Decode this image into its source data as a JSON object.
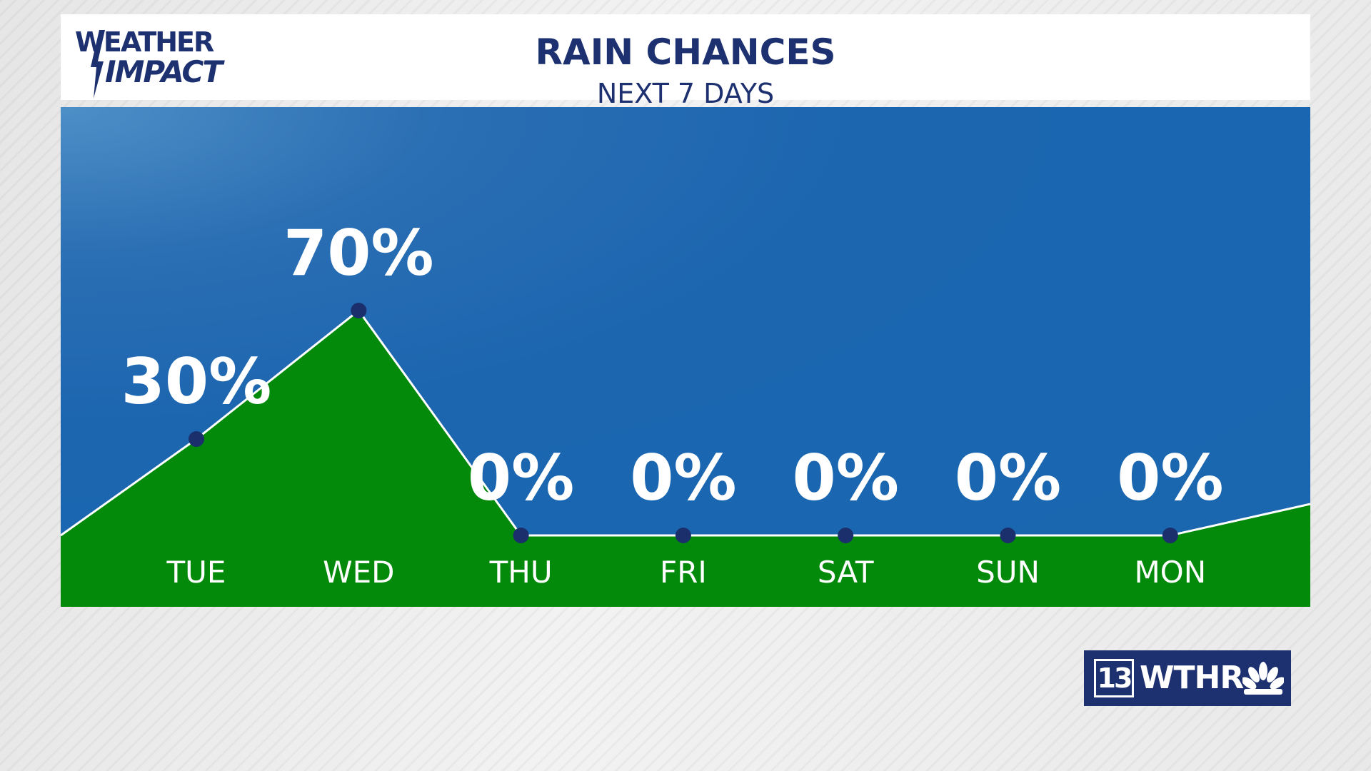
{
  "header": {
    "logo_line1": "WEATHER",
    "logo_line2": "IMPACT",
    "title": "RAIN CHANCES",
    "subtitle": "NEXT 7 DAYS"
  },
  "brand": {
    "channel": "13",
    "call_sign": "WTHR",
    "network_icon": "nbc-peacock-icon"
  },
  "colors": {
    "navy": "#1d3170",
    "panel_blue": "#1966af",
    "fill_green": "#038a0b",
    "line_white": "#ffffff",
    "point_navy": "#1a2f6b"
  },
  "chart_data": {
    "type": "area",
    "categories": [
      "TUE",
      "WED",
      "THU",
      "FRI",
      "SAT",
      "SUN",
      "MON"
    ],
    "values": [
      30,
      70,
      0,
      0,
      0,
      0,
      0
    ],
    "value_labels": [
      "30%",
      "70%",
      "0%",
      "0%",
      "0%",
      "0%",
      "0%"
    ],
    "title": "RAIN CHANCES",
    "subtitle": "NEXT 7 DAYS",
    "ylim": [
      0,
      100
    ],
    "grid": false,
    "legend": "none"
  }
}
